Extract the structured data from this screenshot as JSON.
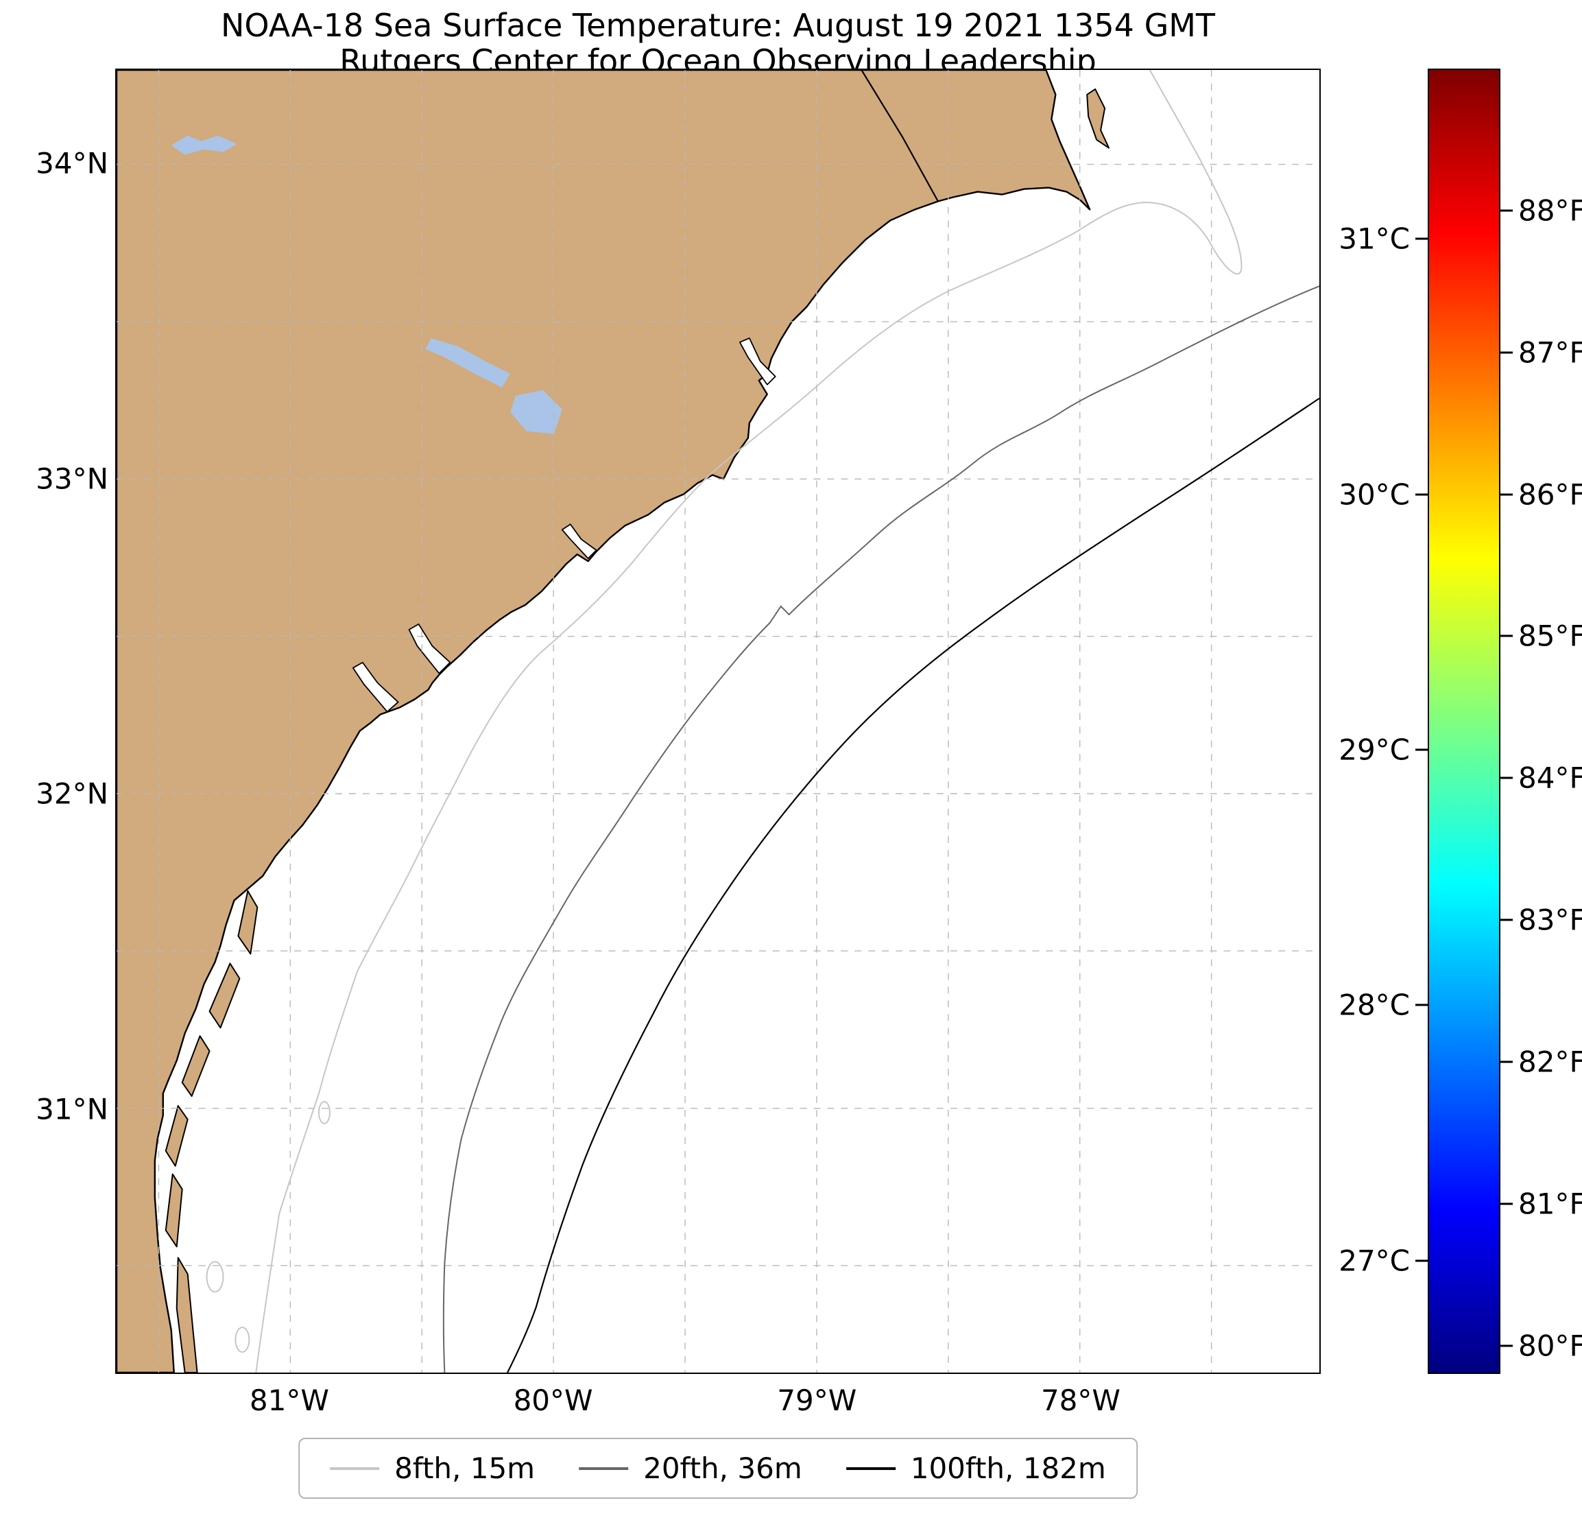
{
  "title": {
    "line1": "NOAA-18 Sea Surface Temperature: August 19 2021 1354 GMT",
    "line2": "Rutgers Center for Ocean Observing Leadership"
  },
  "map": {
    "extent": {
      "lon_west": 81.66,
      "lon_east": 77.09,
      "lat_south": 30.16,
      "lat_north": 34.3
    },
    "grid_step_deg": 0.5,
    "lat_ticks": [
      {
        "value": 34,
        "label": "34°N"
      },
      {
        "value": 33,
        "label": "33°N"
      },
      {
        "value": 32,
        "label": "32°N"
      },
      {
        "value": 31,
        "label": "31°N"
      }
    ],
    "lon_ticks": [
      {
        "value": 81,
        "label": "81°W"
      },
      {
        "value": 80,
        "label": "80°W"
      },
      {
        "value": 79,
        "label": "79°W"
      },
      {
        "value": 78,
        "label": "78°W"
      }
    ],
    "colors": {
      "land": "#d1aa7d",
      "ocean": "#ffffff",
      "lake": "#a9c4e8",
      "coast": "#000000",
      "grid": "#b8b8b8",
      "contour_8fth": "#c6c6c6",
      "contour_20fth": "#666666",
      "contour_100fth": "#000000"
    },
    "features": [
      "coastline",
      "state-border",
      "lake-murray",
      "lake-marion",
      "lake-moultrie",
      "barrier-islands"
    ]
  },
  "colorbar": {
    "colormap": "jet",
    "min_f": 79.8,
    "max_f": 89.0,
    "ticks_c": [
      {
        "value": 31,
        "label": "31°C"
      },
      {
        "value": 30,
        "label": "30°C"
      },
      {
        "value": 29,
        "label": "29°C"
      },
      {
        "value": 28,
        "label": "28°C"
      },
      {
        "value": 27,
        "label": "27°C"
      }
    ],
    "ticks_f": [
      {
        "value": 88,
        "label": "88°F"
      },
      {
        "value": 87,
        "label": "87°F"
      },
      {
        "value": 86,
        "label": "86°F"
      },
      {
        "value": 85,
        "label": "85°F"
      },
      {
        "value": 84,
        "label": "84°F"
      },
      {
        "value": 83,
        "label": "83°F"
      },
      {
        "value": 82,
        "label": "82°F"
      },
      {
        "value": 81,
        "label": "81°F"
      },
      {
        "value": 80,
        "label": "80°F"
      }
    ]
  },
  "legend": {
    "items": [
      {
        "label": "8fth, 15m",
        "color": "#c6c6c6"
      },
      {
        "label": "20fth, 36m",
        "color": "#666666"
      },
      {
        "label": "100fth, 182m",
        "color": "#000000"
      }
    ]
  }
}
